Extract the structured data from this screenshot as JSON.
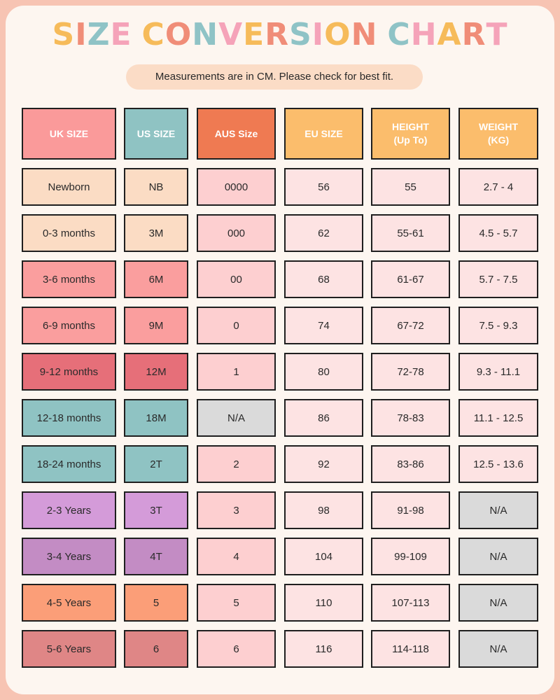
{
  "title_letters": [
    {
      "ch": "S",
      "color": "#f6bb5a"
    },
    {
      "ch": "I",
      "color": "#f08d78"
    },
    {
      "ch": "Z",
      "color": "#8fc3c6"
    },
    {
      "ch": "E",
      "color": "#f5a3b9"
    },
    {
      "ch": " ",
      "color": "#ffffff"
    },
    {
      "ch": "C",
      "color": "#f6bb5a"
    },
    {
      "ch": "O",
      "color": "#f08d78"
    },
    {
      "ch": "N",
      "color": "#8fc3c6"
    },
    {
      "ch": "V",
      "color": "#f5a3b9"
    },
    {
      "ch": "E",
      "color": "#f6bb5a"
    },
    {
      "ch": "R",
      "color": "#f08d78"
    },
    {
      "ch": "S",
      "color": "#8fc3c6"
    },
    {
      "ch": "I",
      "color": "#f5a3b9"
    },
    {
      "ch": "O",
      "color": "#f6bb5a"
    },
    {
      "ch": "N",
      "color": "#f08d78"
    },
    {
      "ch": " ",
      "color": "#ffffff"
    },
    {
      "ch": "C",
      "color": "#8fc3c6"
    },
    {
      "ch": "H",
      "color": "#f5a3b9"
    },
    {
      "ch": "A",
      "color": "#f6bb5a"
    },
    {
      "ch": "R",
      "color": "#f08d78"
    },
    {
      "ch": "T",
      "color": "#f5a3b9"
    }
  ],
  "subtitle": "Measurements are in CM. Please check for best fit.",
  "headers": [
    {
      "label": "UK SIZE",
      "color": "#fa9a9a"
    },
    {
      "label": "US SIZE",
      "color": "#8fc3c3"
    },
    {
      "label": "AUS Size",
      "color": "#ef7a52"
    },
    {
      "label": "EU SIZE",
      "color": "#fbbd6c"
    },
    {
      "label": "HEIGHT\n(Up To)",
      "color": "#fbbd6c"
    },
    {
      "label": "WEIGHT\n(KG)",
      "color": "#fbbd6c"
    }
  ],
  "colors": {
    "aus_default": "#fdcfd0",
    "data_default": "#fde3e3",
    "na_gray": "#dadada"
  },
  "rows": [
    {
      "uk": "Newborn",
      "us": "NB",
      "aus": "0000",
      "eu": "56",
      "height": "55",
      "weight": "2.7 - 4",
      "color": "#fbdcc4"
    },
    {
      "uk": "0-3 months",
      "us": "3M",
      "aus": "000",
      "eu": "62",
      "height": "55-61",
      "weight": "4.5 - 5.7",
      "color": "#fbdcc4"
    },
    {
      "uk": "3-6 months",
      "us": "6M",
      "aus": "00",
      "eu": "68",
      "height": "61-67",
      "weight": "5.7 - 7.5",
      "color": "#fa9e9e"
    },
    {
      "uk": "6-9 months",
      "us": "9M",
      "aus": "0",
      "eu": "74",
      "height": "67-72",
      "weight": "7.5 - 9.3",
      "color": "#fa9e9e"
    },
    {
      "uk": "9-12 months",
      "us": "12M",
      "aus": "1",
      "eu": "80",
      "height": "72-78",
      "weight": "9.3 - 11.1",
      "color": "#e66f79"
    },
    {
      "uk": "12-18 months",
      "us": "18M",
      "aus": "N/A",
      "eu": "86",
      "height": "78-83",
      "weight": "11.1 - 12.5",
      "color": "#8fc3c3",
      "aus_na": true
    },
    {
      "uk": "18-24 months",
      "us": "2T",
      "aus": "2",
      "eu": "92",
      "height": "83-86",
      "weight": "12.5 - 13.6",
      "color": "#8fc3c3"
    },
    {
      "uk": "2-3 Years",
      "us": "3T",
      "aus": "3",
      "eu": "98",
      "height": "91-98",
      "weight": "N/A",
      "color": "#d49bd9",
      "weight_na": true
    },
    {
      "uk": "3-4 Years",
      "us": "4T",
      "aus": "4",
      "eu": "104",
      "height": "99-109",
      "weight": "N/A",
      "color": "#c38cc4",
      "weight_na": true
    },
    {
      "uk": "4-5 Years",
      "us": "5",
      "aus": "5",
      "eu": "110",
      "height": "107-113",
      "weight": "N/A",
      "color": "#fb9e78",
      "weight_na": true
    },
    {
      "uk": "5-6 Years",
      "us": "6",
      "aus": "6",
      "eu": "116",
      "height": "114-118",
      "weight": "N/A",
      "color": "#df8686",
      "weight_na": true
    }
  ]
}
